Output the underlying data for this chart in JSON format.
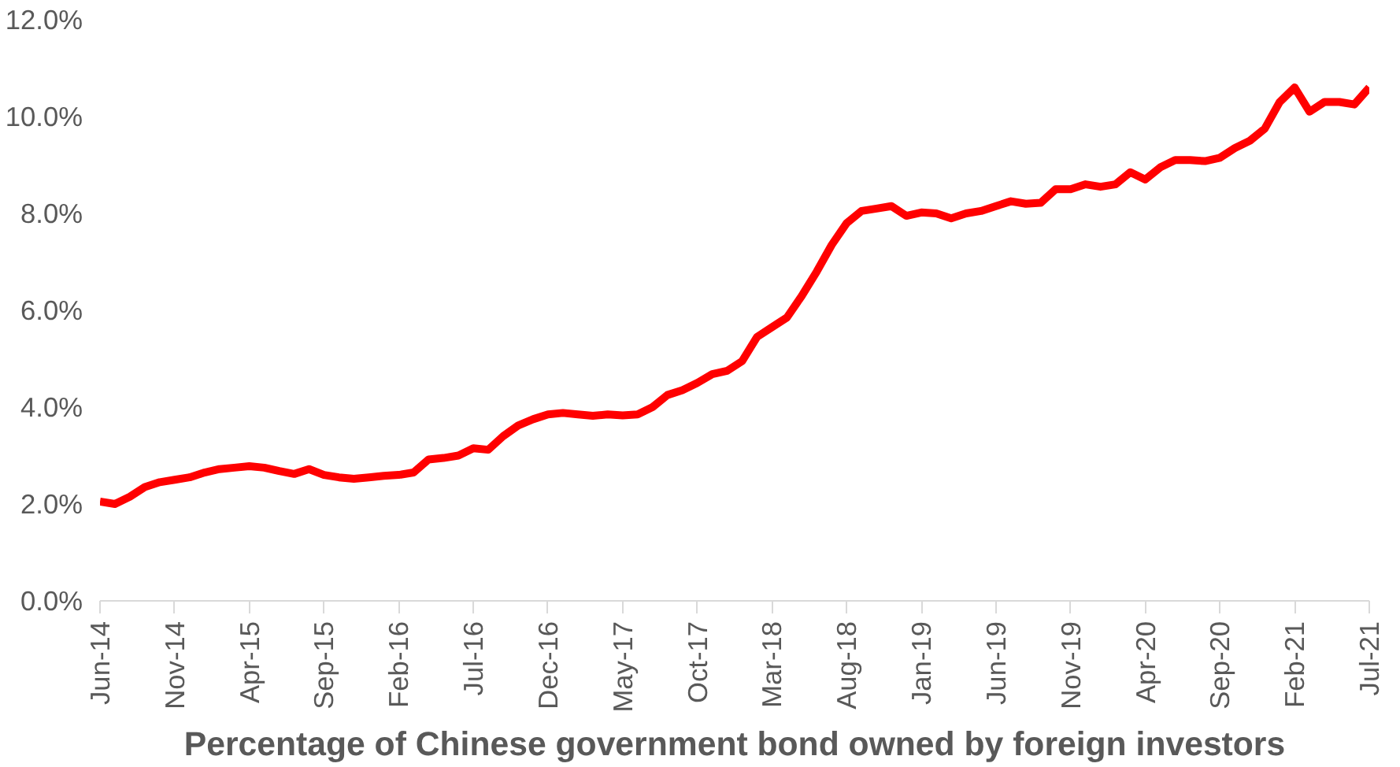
{
  "chart_data": {
    "type": "line",
    "xlabel": "Percentage of Chinese government bond owned by foreign investors",
    "x": [
      "2014-06",
      "2014-07",
      "2014-08",
      "2014-09",
      "2014-10",
      "2014-11",
      "2014-12",
      "2015-01",
      "2015-02",
      "2015-03",
      "2015-04",
      "2015-05",
      "2015-06",
      "2015-07",
      "2015-08",
      "2015-09",
      "2015-10",
      "2015-11",
      "2015-12",
      "2016-01",
      "2016-02",
      "2016-03",
      "2016-04",
      "2016-05",
      "2016-06",
      "2016-07",
      "2016-08",
      "2016-09",
      "2016-10",
      "2016-11",
      "2016-12",
      "2017-01",
      "2017-02",
      "2017-03",
      "2017-04",
      "2017-05",
      "2017-06",
      "2017-07",
      "2017-08",
      "2017-09",
      "2017-10",
      "2017-11",
      "2017-12",
      "2018-01",
      "2018-02",
      "2018-03",
      "2018-04",
      "2018-05",
      "2018-06",
      "2018-07",
      "2018-08",
      "2018-09",
      "2018-10",
      "2018-11",
      "2018-12",
      "2019-01",
      "2019-02",
      "2019-03",
      "2019-04",
      "2019-05",
      "2019-06",
      "2019-07",
      "2019-08",
      "2019-09",
      "2019-10",
      "2019-11",
      "2019-12",
      "2020-01",
      "2020-02",
      "2020-03",
      "2020-04",
      "2020-05",
      "2020-06",
      "2020-07",
      "2020-08",
      "2020-09",
      "2020-10",
      "2020-11",
      "2020-12",
      "2021-01",
      "2021-02",
      "2021-03",
      "2021-04",
      "2021-05",
      "2021-06",
      "2021-07"
    ],
    "series": [
      {
        "color": "#ff0000",
        "values": [
          2.05,
          2.0,
          2.15,
          2.35,
          2.45,
          2.5,
          2.55,
          2.65,
          2.72,
          2.75,
          2.78,
          2.75,
          2.68,
          2.62,
          2.72,
          2.6,
          2.55,
          2.52,
          2.55,
          2.58,
          2.6,
          2.65,
          2.92,
          2.95,
          3.0,
          3.15,
          3.12,
          3.4,
          3.62,
          3.75,
          3.85,
          3.88,
          3.85,
          3.82,
          3.85,
          3.83,
          3.85,
          4.0,
          4.25,
          4.35,
          4.5,
          4.68,
          4.75,
          4.95,
          5.45,
          5.65,
          5.85,
          6.3,
          6.8,
          7.35,
          7.8,
          8.05,
          8.1,
          8.15,
          7.95,
          8.02,
          8.0,
          7.9,
          8.0,
          8.05,
          8.15,
          8.25,
          8.2,
          8.22,
          8.5,
          8.5,
          8.6,
          8.55,
          8.6,
          8.85,
          8.7,
          8.95,
          9.1,
          9.1,
          9.08,
          9.15,
          9.35,
          9.5,
          9.75,
          10.3,
          10.6,
          10.1,
          10.3,
          10.3,
          10.25,
          10.6
        ]
      }
    ],
    "xlim": [
      "2014-06",
      "2021-07"
    ],
    "xticks": [
      {
        "value": "2014-06",
        "label": "Jun-14"
      },
      {
        "value": "2014-11",
        "label": "Nov-14"
      },
      {
        "value": "2015-04",
        "label": "Apr-15"
      },
      {
        "value": "2015-09",
        "label": "Sep-15"
      },
      {
        "value": "2016-02",
        "label": "Feb-16"
      },
      {
        "value": "2016-07",
        "label": "Jul-16"
      },
      {
        "value": "2016-12",
        "label": "Dec-16"
      },
      {
        "value": "2017-05",
        "label": "May-17"
      },
      {
        "value": "2017-10",
        "label": "Oct-17"
      },
      {
        "value": "2018-03",
        "label": "Mar-18"
      },
      {
        "value": "2018-08",
        "label": "Aug-18"
      },
      {
        "value": "2019-01",
        "label": "Jan-19"
      },
      {
        "value": "2019-06",
        "label": "Jun-19"
      },
      {
        "value": "2019-11",
        "label": "Nov-19"
      },
      {
        "value": "2020-04",
        "label": "Apr-20"
      },
      {
        "value": "2020-09",
        "label": "Sep-20"
      },
      {
        "value": "2021-02",
        "label": "Feb-21"
      },
      {
        "value": "2021-07",
        "label": "Jul-21"
      }
    ],
    "ylim": [
      0,
      12
    ],
    "yticks": [
      {
        "value": 0,
        "label": "0.0%"
      },
      {
        "value": 2,
        "label": "2.0%"
      },
      {
        "value": 4,
        "label": "4.0%"
      },
      {
        "value": 6,
        "label": "6.0%"
      },
      {
        "value": 8,
        "label": "8.0%"
      },
      {
        "value": 10,
        "label": "10.0%"
      },
      {
        "value": 12,
        "label": "12.0%"
      }
    ],
    "grid": false
  }
}
